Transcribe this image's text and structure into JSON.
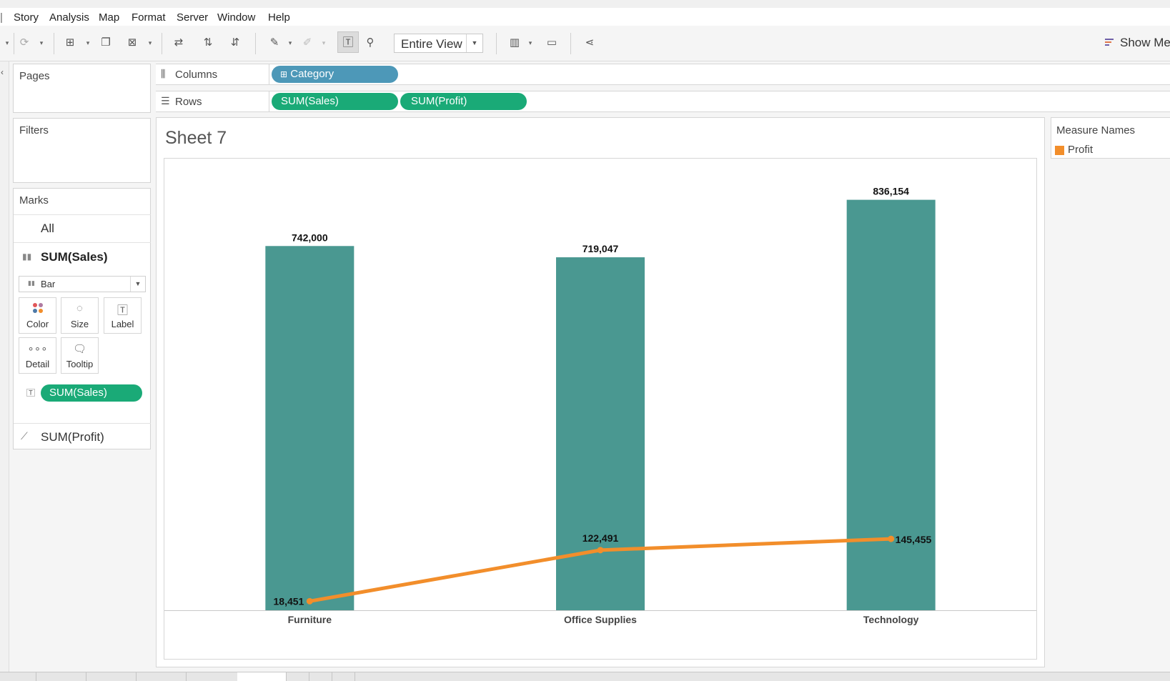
{
  "menu": {
    "items": [
      "Story",
      "Analysis",
      "Map",
      "Format",
      "Server",
      "Window",
      "Help"
    ]
  },
  "toolbar": {
    "fit": "Entire View",
    "show_me": "Show Me",
    "icons": [
      "pause-auto-update-icon",
      "refresh-icon",
      "new-worksheet-icon",
      "duplicate-icon",
      "clear-sheet-icon",
      "swap-rows-columns-icon",
      "sort-ascending-icon",
      "sort-descending-icon",
      "highlight-icon",
      "group-members-icon",
      "show-mark-labels-icon",
      "fix-axes-icon",
      "fit-select",
      "show-cards-icon",
      "presentation-mode-icon",
      "share-icon",
      "show-me-icon"
    ]
  },
  "panels": {
    "pages": "Pages",
    "filters": "Filters",
    "marks": {
      "title": "Marks",
      "all": "All",
      "sales_card": "SUM(Sales)",
      "mark_type": "Bar",
      "buttons": [
        "Color",
        "Size",
        "Label",
        "Detail",
        "Tooltip"
      ],
      "label_pill": "SUM(Sales)",
      "profit_card": "SUM(Profit)"
    }
  },
  "shelves": {
    "columns": {
      "label": "Columns",
      "pills": [
        "Category"
      ]
    },
    "rows": {
      "label": "Rows",
      "pills": [
        "SUM(Sales)",
        "SUM(Profit)"
      ]
    }
  },
  "sheet": {
    "title": "Sheet 7"
  },
  "legend": {
    "title": "Measure Names",
    "items": [
      {
        "label": "Profit",
        "color": "#f28e2b"
      }
    ]
  },
  "colors": {
    "bar": "#4a9891",
    "line": "#f28e2b",
    "pill_green": "#1aaa77",
    "pill_blue": "#4d98b8"
  },
  "chart_data": {
    "type": "bar",
    "categories": [
      "Furniture",
      "Office Supplies",
      "Technology"
    ],
    "series": [
      {
        "values": [
          742000,
          719047,
          836154
        ],
        "labels": [
          "742,000",
          "719,047",
          "836,154"
        ]
      },
      {
        "name": "Profit",
        "values": [
          18451,
          122491,
          145455
        ],
        "labels": [
          "18,451",
          "122,491",
          "145,455"
        ]
      }
    ],
    "xlabel": "",
    "ylabel": "",
    "ylim": [
      0,
      920000
    ],
    "grid": false,
    "legend": "right"
  }
}
